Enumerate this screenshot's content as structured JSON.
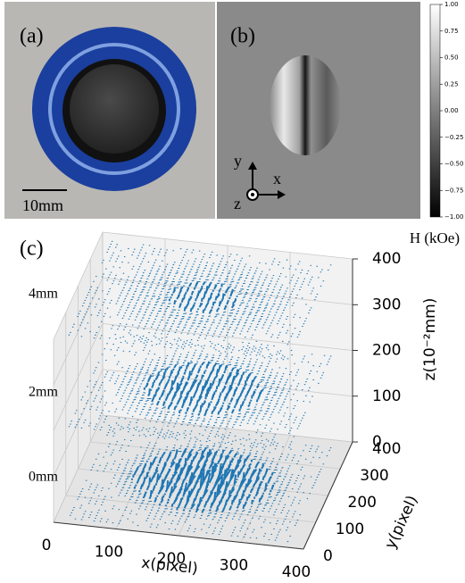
{
  "panel_a": {
    "label": "(a)",
    "scale_bar": "10mm"
  },
  "panel_b": {
    "label": "(b)",
    "axes": {
      "y": "y",
      "x": "x",
      "z": "z"
    },
    "colorbar": {
      "unit": "H (kOe)",
      "lim": [
        -1,
        1
      ],
      "ticks": [
        {
          "value": 1,
          "label": "1.00"
        },
        {
          "value": 0.75,
          "label": "0.75"
        },
        {
          "value": 0.5,
          "label": "0.50"
        },
        {
          "value": 0.25,
          "label": "0.25"
        },
        {
          "value": 0,
          "label": "0.00"
        },
        {
          "value": -0.25,
          "label": "−0.25"
        },
        {
          "value": -0.5,
          "label": "−0.50"
        },
        {
          "value": -0.75,
          "label": "−0.75"
        },
        {
          "value": -1,
          "label": "−1.00"
        }
      ]
    }
  },
  "panel_c": {
    "label": "(c)",
    "xlabel": "x(pixel)",
    "ylabel": "y(pixel)",
    "zlabel": "z(10⁻²mm)",
    "xlim": [
      0,
      400
    ],
    "ylim": [
      0,
      400
    ],
    "zlim": [
      0,
      400
    ],
    "xticks": [
      0,
      100,
      200,
      300,
      400
    ],
    "yticks": [
      0,
      100,
      200,
      300,
      400
    ],
    "zticks": [
      0,
      100,
      200,
      300,
      400
    ],
    "layers": [
      "4mm",
      "2mm",
      "0mm"
    ]
  }
}
